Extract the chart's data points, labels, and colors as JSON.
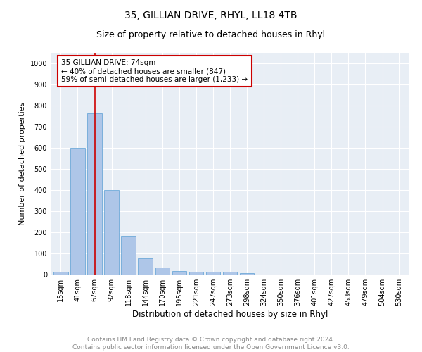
{
  "title": "35, GILLIAN DRIVE, RHYL, LL18 4TB",
  "subtitle": "Size of property relative to detached houses in Rhyl",
  "xlabel": "Distribution of detached houses by size in Rhyl",
  "ylabel": "Number of detached properties",
  "footnote": "Contains HM Land Registry data © Crown copyright and database right 2024.\nContains public sector information licensed under the Open Government Licence v3.0.",
  "bar_labels": [
    "15sqm",
    "41sqm",
    "67sqm",
    "92sqm",
    "118sqm",
    "144sqm",
    "170sqm",
    "195sqm",
    "221sqm",
    "247sqm",
    "273sqm",
    "298sqm",
    "324sqm",
    "350sqm",
    "376sqm",
    "401sqm",
    "427sqm",
    "453sqm",
    "479sqm",
    "504sqm",
    "530sqm"
  ],
  "bar_values": [
    15,
    600,
    765,
    400,
    185,
    78,
    35,
    18,
    13,
    13,
    12,
    7,
    0,
    0,
    0,
    0,
    0,
    0,
    0,
    0,
    0
  ],
  "bar_color": "#aec6e8",
  "bar_edge_color": "#5a9fd4",
  "vline_x": 2.0,
  "vline_color": "#cc0000",
  "annotation_text": "35 GILLIAN DRIVE: 74sqm\n← 40% of detached houses are smaller (847)\n59% of semi-detached houses are larger (1,233) →",
  "annotation_box_color": "#ffffff",
  "annotation_box_edge": "#cc0000",
  "ylim": [
    0,
    1050
  ],
  "yticks": [
    0,
    100,
    200,
    300,
    400,
    500,
    600,
    700,
    800,
    900,
    1000
  ],
  "plot_bg_color": "#e8eef5",
  "title_fontsize": 10,
  "subtitle_fontsize": 9,
  "axis_label_fontsize": 8,
  "tick_fontsize": 7,
  "footnote_fontsize": 6.5
}
